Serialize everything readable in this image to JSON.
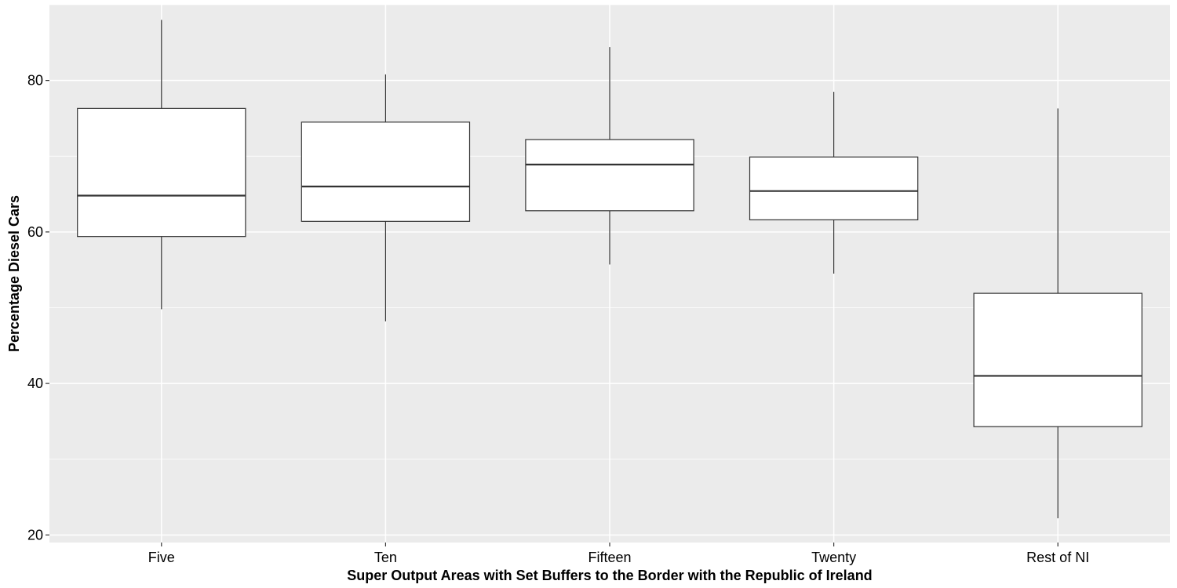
{
  "chart_data": {
    "type": "boxplot",
    "title": "",
    "xlabel": "Super Output Areas with Set Buffers to the Border with the Republic of Ireland",
    "ylabel": "Percentage Diesel Cars",
    "ylim": [
      19,
      90
    ],
    "yticks": [
      20,
      40,
      60,
      80
    ],
    "categories": [
      "Five",
      "Ten",
      "Fifteen",
      "Twenty",
      "Rest of NI"
    ],
    "boxes": [
      {
        "category": "Five",
        "min": 49.8,
        "q1": 59.4,
        "median": 64.8,
        "q3": 76.3,
        "max": 88.0
      },
      {
        "category": "Ten",
        "min": 48.2,
        "q1": 61.4,
        "median": 66.0,
        "q3": 74.5,
        "max": 80.8
      },
      {
        "category": "Fifteen",
        "min": 55.7,
        "q1": 62.8,
        "median": 68.9,
        "q3": 72.2,
        "max": 84.4
      },
      {
        "category": "Twenty",
        "min": 54.5,
        "q1": 61.6,
        "median": 65.4,
        "q3": 69.9,
        "max": 78.5
      },
      {
        "category": "Rest of NI",
        "min": 22.2,
        "q1": 34.3,
        "median": 41.0,
        "q3": 51.9,
        "max": 76.3
      }
    ],
    "grid": true,
    "colors": {
      "panel": "#ebebeb",
      "grid": "#ffffff",
      "box_fill": "#ffffff",
      "box_stroke": "#333333"
    }
  }
}
